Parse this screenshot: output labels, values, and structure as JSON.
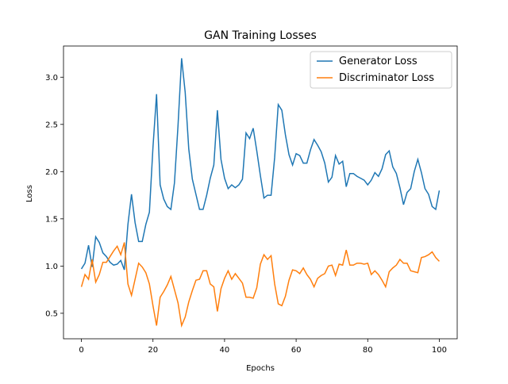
{
  "chart_data": {
    "type": "line",
    "title": "GAN Training Losses",
    "xlabel": "Epochs",
    "ylabel": "Loss",
    "x": [
      0,
      1,
      2,
      3,
      4,
      5,
      6,
      7,
      8,
      9,
      10,
      11,
      12,
      13,
      14,
      15,
      16,
      17,
      18,
      19,
      20,
      21,
      22,
      23,
      24,
      25,
      26,
      27,
      28,
      29,
      30,
      31,
      32,
      33,
      34,
      35,
      36,
      37,
      38,
      39,
      40,
      41,
      42,
      43,
      44,
      45,
      46,
      47,
      48,
      49,
      50,
      51,
      52,
      53,
      54,
      55,
      56,
      57,
      58,
      59,
      60,
      61,
      62,
      63,
      64,
      65,
      66,
      67,
      68,
      69,
      70,
      71,
      72,
      73,
      74,
      75,
      76,
      77,
      78,
      79,
      80,
      81,
      82,
      83,
      84,
      85,
      86,
      87,
      88,
      89,
      90,
      91,
      92,
      93,
      94,
      95,
      96,
      97,
      98,
      99,
      100
    ],
    "series": [
      {
        "name": "Generator Loss",
        "color": "#1f77b4",
        "values": [
          0.97,
          1.03,
          1.22,
          0.99,
          1.31,
          1.25,
          1.14,
          1.1,
          1.04,
          1.01,
          1.02,
          1.06,
          0.96,
          1.44,
          1.76,
          1.46,
          1.26,
          1.26,
          1.44,
          1.57,
          2.26,
          2.82,
          1.86,
          1.71,
          1.63,
          1.6,
          1.88,
          2.49,
          3.2,
          2.84,
          2.24,
          1.92,
          1.76,
          1.6,
          1.6,
          1.75,
          1.93,
          2.07,
          2.65,
          2.13,
          1.93,
          1.82,
          1.86,
          1.83,
          1.86,
          1.92,
          2.41,
          2.35,
          2.46,
          2.22,
          1.96,
          1.72,
          1.75,
          1.75,
          2.15,
          2.71,
          2.65,
          2.39,
          2.18,
          2.07,
          2.19,
          2.17,
          2.09,
          2.09,
          2.23,
          2.34,
          2.28,
          2.21,
          2.09,
          1.89,
          1.94,
          2.17,
          2.08,
          2.11,
          1.84,
          1.98,
          1.98,
          1.95,
          1.93,
          1.91,
          1.86,
          1.91,
          1.99,
          1.95,
          2.03,
          2.18,
          2.22,
          2.05,
          1.98,
          1.83,
          1.65,
          1.78,
          1.82,
          2.0,
          2.13,
          1.99,
          1.82,
          1.76,
          1.63,
          1.6,
          1.8
        ]
      },
      {
        "name": "Discriminator Loss",
        "color": "#ff7f0e",
        "values": [
          0.78,
          0.91,
          0.86,
          1.07,
          0.83,
          0.91,
          1.04,
          1.04,
          1.1,
          1.16,
          1.21,
          1.12,
          1.25,
          0.81,
          0.69,
          0.86,
          1.03,
          0.99,
          0.93,
          0.81,
          0.58,
          0.37,
          0.67,
          0.73,
          0.8,
          0.89,
          0.75,
          0.61,
          0.37,
          0.46,
          0.62,
          0.74,
          0.85,
          0.86,
          0.95,
          0.95,
          0.81,
          0.78,
          0.52,
          0.76,
          0.87,
          0.95,
          0.86,
          0.92,
          0.87,
          0.82,
          0.67,
          0.67,
          0.66,
          0.77,
          1.02,
          1.12,
          1.07,
          1.11,
          0.81,
          0.6,
          0.58,
          0.68,
          0.85,
          0.96,
          0.95,
          0.92,
          0.98,
          0.91,
          0.86,
          0.78,
          0.87,
          0.9,
          0.92,
          1.0,
          1.01,
          0.9,
          1.02,
          1.01,
          1.17,
          1.01,
          1.01,
          1.03,
          1.03,
          1.02,
          1.03,
          0.91,
          0.95,
          0.91,
          0.85,
          0.78,
          0.94,
          0.98,
          1.01,
          1.07,
          1.03,
          1.03,
          0.95,
          0.94,
          0.93,
          1.09,
          1.1,
          1.12,
          1.15,
          1.09,
          1.05
        ]
      }
    ],
    "xlim": [
      -5,
      105
    ],
    "ylim": [
      0.23,
      3.33
    ],
    "xticks": [
      0,
      20,
      40,
      60,
      80,
      100
    ],
    "yticks": [
      0.5,
      {
        "value": 1.0,
        "label": "1.0"
      },
      1.5,
      {
        "value": 2.0,
        "label": "2.0"
      },
      2.5,
      {
        "value": 3.0,
        "label": "3.0"
      }
    ],
    "legend": "upper right"
  }
}
